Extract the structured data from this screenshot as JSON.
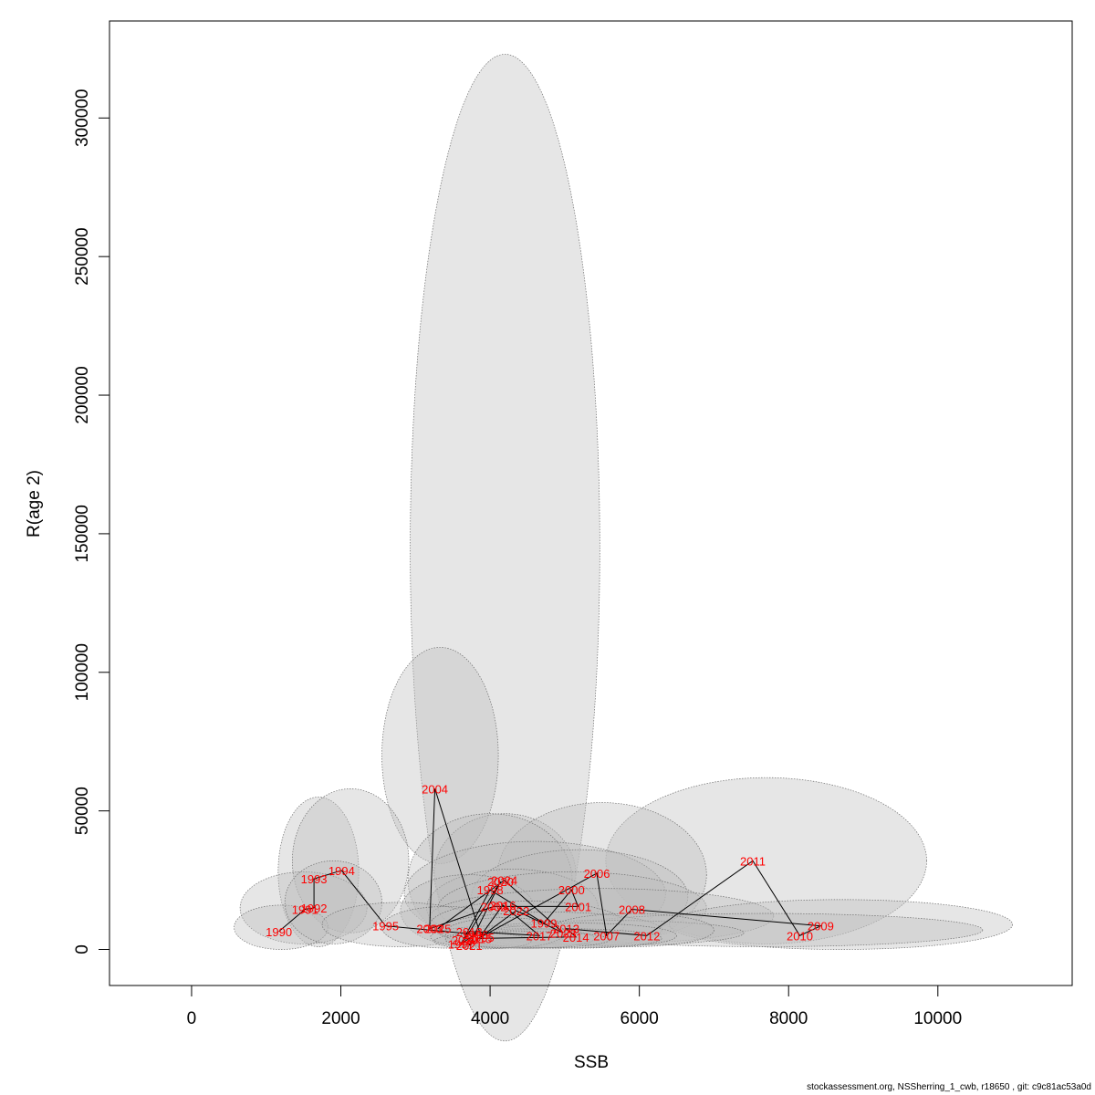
{
  "chart_data": {
    "type": "scatter",
    "xlabel": "SSB",
    "ylabel": "R(age 2)",
    "xlim": [
      -1100,
      11800
    ],
    "ylim": [
      -13000,
      335000
    ],
    "x_ticks": [
      0,
      2000,
      4000,
      6000,
      8000,
      10000
    ],
    "y_ticks": [
      0,
      50000,
      100000,
      150000,
      200000,
      250000,
      300000
    ],
    "grid": false,
    "legend": "none",
    "colors": {
      "label": "#ff0000",
      "line": "#000000",
      "ellipse_fill": "#bebebe",
      "ellipse_stroke": "#6e6e6e"
    },
    "points": [
      {
        "year": "1990",
        "ssb": 1170,
        "r": 6500
      },
      {
        "year": "1991",
        "ssb": 1520,
        "r": 14500
      },
      {
        "year": "1992",
        "ssb": 1640,
        "r": 15000
      },
      {
        "year": "1993",
        "ssb": 1640,
        "r": 25500
      },
      {
        "year": "1994",
        "ssb": 2010,
        "r": 28500
      },
      {
        "year": "1995",
        "ssb": 2600,
        "r": 8500
      },
      {
        "year": "1996",
        "ssb": 3800,
        "r": 5500
      },
      {
        "year": "1997",
        "ssb": 3610,
        "r": 2000
      },
      {
        "year": "1998",
        "ssb": 4000,
        "r": 21500
      },
      {
        "year": "1999",
        "ssb": 4720,
        "r": 9500
      },
      {
        "year": "2000",
        "ssb": 5090,
        "r": 21500
      },
      {
        "year": "2001",
        "ssb": 5180,
        "r": 15500
      },
      {
        "year": "2002",
        "ssb": 4050,
        "r": 15500
      },
      {
        "year": "2003",
        "ssb": 3190,
        "r": 7500
      },
      {
        "year": "2004",
        "ssb": 3260,
        "r": 58000
      },
      {
        "year": "2005",
        "ssb": 3880,
        "r": 4500
      },
      {
        "year": "2006",
        "ssb": 5430,
        "r": 27500
      },
      {
        "year": "2007",
        "ssb": 5560,
        "r": 5000
      },
      {
        "year": "2008",
        "ssb": 5900,
        "r": 14500
      },
      {
        "year": "2009",
        "ssb": 8430,
        "r": 8500
      },
      {
        "year": "2010",
        "ssb": 8150,
        "r": 5000
      },
      {
        "year": "2011",
        "ssb": 7520,
        "r": 32000
      },
      {
        "year": "2012",
        "ssb": 6100,
        "r": 5000
      },
      {
        "year": "2013",
        "ssb": 5020,
        "r": 7500
      },
      {
        "year": "2014",
        "ssb": 5150,
        "r": 4500
      },
      {
        "year": "2015",
        "ssb": 3850,
        "r": 4000
      },
      {
        "year": "2016",
        "ssb": 4170,
        "r": 16000
      },
      {
        "year": "2017",
        "ssb": 4660,
        "r": 5000
      },
      {
        "year": "2018",
        "ssb": 3720,
        "r": 6500
      },
      {
        "year": "2019",
        "ssb": 3660,
        "r": 3500
      },
      {
        "year": "2020",
        "ssb": 4140,
        "r": 24500
      },
      {
        "year": "2021",
        "ssb": 3720,
        "r": 1500
      },
      {
        "year": "2022",
        "ssb": 4350,
        "r": 14000
      },
      {
        "year": "2023",
        "ssb": 4980,
        "r": 6000
      },
      {
        "year": "2024",
        "ssb": 4190,
        "r": 25000
      },
      {
        "year": "2025",
        "ssb": 3300,
        "r": 7500
      }
    ],
    "ellipses": [
      {
        "cx": 4200,
        "cy": 145000,
        "rx": 1270,
        "ry": 178000,
        "rot": 0
      },
      {
        "cx": 3330,
        "cy": 70000,
        "rx": 780,
        "ry": 39000,
        "rot": 0
      },
      {
        "cx": 7700,
        "cy": 32000,
        "rx": 2150,
        "ry": 30000,
        "rot": 0
      },
      {
        "cx": 1700,
        "cy": 28000,
        "rx": 540,
        "ry": 27000,
        "rot": 0
      },
      {
        "cx": 2130,
        "cy": 32000,
        "rx": 780,
        "ry": 26000,
        "rot": 0
      },
      {
        "cx": 1500,
        "cy": 15000,
        "rx": 850,
        "ry": 13000,
        "rot": 0
      },
      {
        "cx": 1200,
        "cy": 8000,
        "rx": 630,
        "ry": 8000,
        "rot": 0
      },
      {
        "cx": 4200,
        "cy": 27000,
        "rx": 950,
        "ry": 22000,
        "rot": 0
      },
      {
        "cx": 5500,
        "cy": 27000,
        "rx": 1400,
        "ry": 26000,
        "rot": 0
      },
      {
        "cx": 4000,
        "cy": 25000,
        "rx": 1100,
        "ry": 24000,
        "rot": 0
      },
      {
        "cx": 4600,
        "cy": 20000,
        "rx": 1750,
        "ry": 19000,
        "rot": 0
      },
      {
        "cx": 5200,
        "cy": 19000,
        "rx": 1450,
        "ry": 17000,
        "rot": 0
      },
      {
        "cx": 4300,
        "cy": 15000,
        "rx": 1150,
        "ry": 14000,
        "rot": 0
      },
      {
        "cx": 3700,
        "cy": 14000,
        "rx": 900,
        "ry": 13000,
        "rot": 0
      },
      {
        "cx": 5100,
        "cy": 15000,
        "rx": 1800,
        "ry": 13000,
        "rot": 0
      },
      {
        "cx": 5500,
        "cy": 12000,
        "rx": 2300,
        "ry": 10000,
        "rot": 0
      },
      {
        "cx": 8700,
        "cy": 9000,
        "rx": 2300,
        "ry": 9000,
        "rot": 0
      },
      {
        "cx": 7700,
        "cy": 7000,
        "rx": 2900,
        "ry": 6000,
        "rot": 0
      },
      {
        "cx": 1900,
        "cy": 17000,
        "rx": 650,
        "ry": 15000,
        "rot": 0
      },
      {
        "cx": 2800,
        "cy": 9000,
        "rx": 1050,
        "ry": 8000,
        "rot": 0
      },
      {
        "cx": 3400,
        "cy": 8000,
        "rx": 850,
        "ry": 7500,
        "rot": 0
      },
      {
        "cx": 4500,
        "cy": 9000,
        "rx": 1300,
        "ry": 8500,
        "rot": 0
      },
      {
        "cx": 4800,
        "cy": 7000,
        "rx": 1500,
        "ry": 6500,
        "rot": 0
      },
      {
        "cx": 5600,
        "cy": 6000,
        "rx": 1800,
        "ry": 4500,
        "rot": 0
      },
      {
        "cx": 4100,
        "cy": 4500,
        "rx": 900,
        "ry": 4000,
        "rot": 0
      },
      {
        "cx": 5900,
        "cy": 7000,
        "rx": 1100,
        "ry": 6000,
        "rot": 0
      },
      {
        "cx": 5200,
        "cy": 5000,
        "rx": 1300,
        "ry": 4500,
        "rot": 0
      },
      {
        "cx": 4500,
        "cy": 4000,
        "rx": 900,
        "ry": 3500,
        "rot": 0
      },
      {
        "cx": 5000,
        "cy": 4000,
        "rx": 1300,
        "ry": 3500,
        "rot": 0
      },
      {
        "cx": 4200,
        "cy": 6000,
        "rx": 800,
        "ry": 5500,
        "rot": 0
      },
      {
        "cx": 3900,
        "cy": 3000,
        "rx": 650,
        "ry": 2800,
        "rot": 0
      },
      {
        "cx": 4500,
        "cy": 3500,
        "rx": 1100,
        "ry": 3000,
        "rot": 0
      }
    ]
  },
  "footer": "stockassessment.org, NSSherring_1_cwb, r18650 , git: c9c81ac53a0d"
}
